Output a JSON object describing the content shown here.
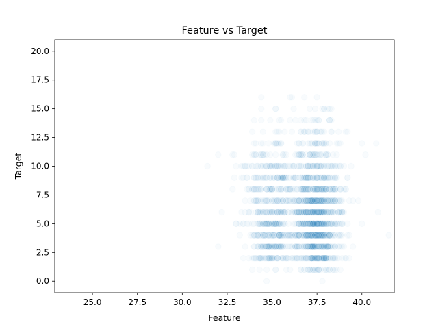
{
  "chart_data": {
    "type": "scatter",
    "title": "Feature vs Target",
    "xlabel": "Feature",
    "ylabel": "Target",
    "xlim": [
      22.9,
      41.8
    ],
    "ylim": [
      -1.0,
      21.0
    ],
    "xticks": [
      "25.0",
      "27.5",
      "30.0",
      "32.5",
      "35.0",
      "37.5",
      "40.0"
    ],
    "yticks": [
      "0.0",
      "2.5",
      "5.0",
      "7.5",
      "10.0",
      "12.5",
      "15.0",
      "17.5",
      "20.0"
    ],
    "grid": false,
    "marker_color": "#1f77b4",
    "marker_alpha": 0.03,
    "x_clusters": [
      {
        "center": 35.0,
        "spread": 1.4,
        "weight": 0.35
      },
      {
        "center": 37.5,
        "spread": 1.2,
        "weight": 0.65
      }
    ],
    "y_levels": [
      {
        "y": 0,
        "count": 2
      },
      {
        "y": 1,
        "count": 40
      },
      {
        "y": 2,
        "count": 150
      },
      {
        "y": 3,
        "count": 180
      },
      {
        "y": 4,
        "count": 200
      },
      {
        "y": 5,
        "count": 200
      },
      {
        "y": 6,
        "count": 190
      },
      {
        "y": 7,
        "count": 170
      },
      {
        "y": 8,
        "count": 140
      },
      {
        "y": 9,
        "count": 120
      },
      {
        "y": 10,
        "count": 100
      },
      {
        "y": 11,
        "count": 60
      },
      {
        "y": 12,
        "count": 45
      },
      {
        "y": 13,
        "count": 30
      },
      {
        "y": 14,
        "count": 20
      },
      {
        "y": 15,
        "count": 12
      },
      {
        "y": 16,
        "count": 5
      }
    ]
  }
}
